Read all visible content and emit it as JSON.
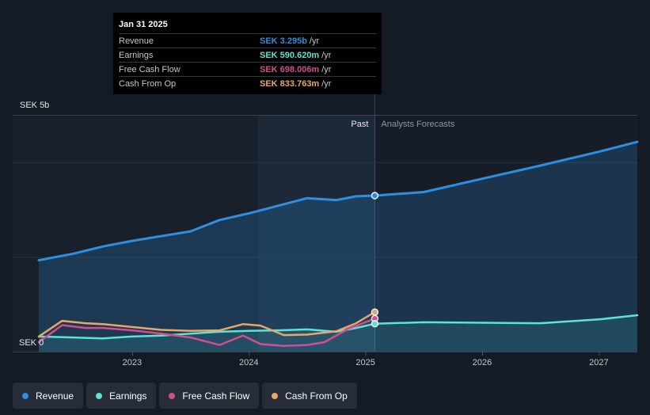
{
  "colors": {
    "revenue": "#2e8ee0",
    "earnings": "#5de3d2",
    "free_cash_flow": "#d14f8e",
    "cash_from_op": "#e8a766",
    "grid": "#2b333e",
    "axis_text": "#c4c8ce"
  },
  "tooltip": {
    "date": "Jan 31 2025",
    "rows": [
      {
        "label": "Revenue",
        "value": "SEK 3.295b",
        "unit": "/yr",
        "color": "#2e8ee0"
      },
      {
        "label": "Earnings",
        "value": "SEK 590.620m",
        "unit": "/yr",
        "color": "#5de3d2"
      },
      {
        "label": "Free Cash Flow",
        "value": "SEK 698.006m",
        "unit": "/yr",
        "color": "#d14f8e"
      },
      {
        "label": "Cash From Op",
        "value": "SEK 833.763m",
        "unit": "/yr",
        "color": "#e8a766"
      }
    ]
  },
  "legend": [
    {
      "label": "Revenue",
      "color": "#2e8ee0"
    },
    {
      "label": "Earnings",
      "color": "#5de3d2"
    },
    {
      "label": "Free Cash Flow",
      "color": "#d14f8e"
    },
    {
      "label": "Cash From Op",
      "color": "#e8a766"
    }
  ],
  "chart_data": {
    "type": "line",
    "title": "",
    "y_unit": "SEK b",
    "ylim": [
      0,
      5
    ],
    "y_tick_labels": {
      "top": "SEK 5b",
      "bottom": "SEK 0"
    },
    "xlim": [
      2022.2,
      2027.33
    ],
    "x_ticks": [
      2023,
      2024,
      2025,
      2026,
      2027
    ],
    "x_tick_labels": [
      "2023",
      "2024",
      "2025",
      "2026",
      "2027"
    ],
    "past_label": "Past",
    "forecast_label": "Analysts Forecasts",
    "divider_x": 2025.08,
    "highlight_start": 2024.08,
    "series": [
      {
        "name": "Revenue",
        "key": "revenue",
        "x": [
          2022.2,
          2022.5,
          2022.75,
          2023.0,
          2023.25,
          2023.5,
          2023.75,
          2024.0,
          2024.25,
          2024.5,
          2024.75,
          2024.92,
          2025.08,
          2025.5,
          2026.0,
          2026.5,
          2027.0,
          2027.33
        ],
        "values": [
          1.93,
          2.07,
          2.22,
          2.34,
          2.44,
          2.54,
          2.78,
          2.92,
          3.08,
          3.24,
          3.2,
          3.28,
          3.295,
          3.37,
          3.65,
          3.93,
          4.22,
          4.43
        ]
      },
      {
        "name": "Earnings",
        "key": "earnings",
        "x": [
          2022.2,
          2022.5,
          2022.75,
          2023.0,
          2023.25,
          2023.5,
          2023.75,
          2024.0,
          2024.25,
          2024.5,
          2024.75,
          2024.92,
          2025.08,
          2025.5,
          2026.0,
          2026.5,
          2027.0,
          2027.33
        ],
        "values": [
          0.32,
          0.3,
          0.28,
          0.32,
          0.34,
          0.38,
          0.42,
          0.44,
          0.45,
          0.47,
          0.42,
          0.5,
          0.59,
          0.62,
          0.61,
          0.6,
          0.68,
          0.77
        ]
      },
      {
        "name": "Free Cash Flow",
        "key": "free_cash_flow",
        "x": [
          2022.2,
          2022.4,
          2022.6,
          2022.75,
          2023.0,
          2023.25,
          2023.5,
          2023.75,
          2023.95,
          2024.1,
          2024.3,
          2024.5,
          2024.65,
          2024.85,
          2025.08
        ],
        "values": [
          0.2,
          0.56,
          0.5,
          0.5,
          0.45,
          0.38,
          0.3,
          0.14,
          0.34,
          0.16,
          0.12,
          0.14,
          0.2,
          0.48,
          0.698
        ]
      },
      {
        "name": "Cash From Op",
        "key": "cash_from_op",
        "x": [
          2022.2,
          2022.4,
          2022.6,
          2022.75,
          2023.0,
          2023.25,
          2023.5,
          2023.75,
          2023.95,
          2024.1,
          2024.3,
          2024.5,
          2024.75,
          2024.92,
          2025.08
        ],
        "values": [
          0.32,
          0.65,
          0.6,
          0.58,
          0.52,
          0.46,
          0.44,
          0.45,
          0.58,
          0.55,
          0.35,
          0.36,
          0.43,
          0.6,
          0.834
        ]
      }
    ]
  }
}
